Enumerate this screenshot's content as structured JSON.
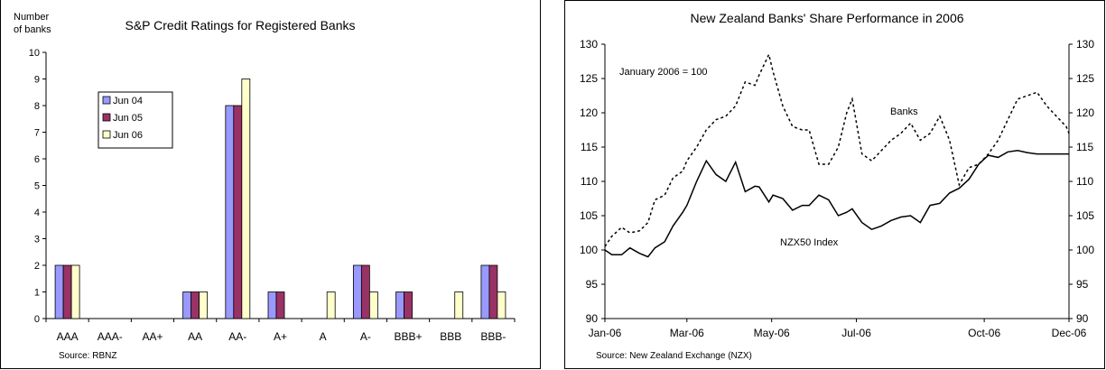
{
  "chart_data": [
    {
      "type": "bar",
      "title": "S&P Credit Ratings for Registered Banks",
      "ylabel_line1": "Number",
      "ylabel_line2": "of banks",
      "source": "Source: RBNZ",
      "categories": [
        "AAA",
        "AAA-",
        "AA+",
        "AA",
        "AA-",
        "A+",
        "A",
        "A-",
        "BBB+",
        "BBB",
        "BBB-"
      ],
      "series": [
        {
          "name": "Jun 04",
          "color": "#9999ff",
          "values": [
            2,
            0,
            0,
            1,
            8,
            1,
            0,
            2,
            1,
            0,
            2
          ]
        },
        {
          "name": "Jun 05",
          "color": "#993366",
          "values": [
            2,
            0,
            0,
            1,
            8,
            1,
            0,
            2,
            1,
            0,
            2
          ]
        },
        {
          "name": "Jun 06",
          "color": "#ffffcc",
          "values": [
            2,
            0,
            0,
            1,
            9,
            0,
            1,
            1,
            0,
            1,
            1
          ]
        }
      ],
      "ylim": [
        0,
        10
      ],
      "yticks": [
        "0",
        "1",
        "2",
        "3",
        "4",
        "5",
        "6",
        "7",
        "8",
        "9",
        "10"
      ],
      "legend_position": "upper-left",
      "grid": false
    },
    {
      "type": "line",
      "title": "New Zealand Banks' Share Performance in 2006",
      "annotation": "January 2006 = 100",
      "source": "Source: New Zealand Exchange (NZX)",
      "xlim": [
        "2006-01-01",
        "2006-12-01"
      ],
      "xtick_labels": [
        "Jan-06",
        "Mar-06",
        "May-06",
        "Jul-06",
        "Oct-06",
        "Dec-06"
      ],
      "xtick_dates": [
        "2006-01-01",
        "2006-03-01",
        "2006-05-01",
        "2006-07-01",
        "2006-10-01",
        "2006-12-01"
      ],
      "ylim": [
        90,
        130
      ],
      "yticks": [
        "90",
        "95",
        "100",
        "105",
        "110",
        "115",
        "120",
        "125",
        "130"
      ],
      "grid": false,
      "series": [
        {
          "name": "Banks",
          "style": "dotted",
          "x": [
            "2006-01-01",
            "2006-01-06",
            "2006-01-13",
            "2006-01-19",
            "2006-01-26",
            "2006-02-01",
            "2006-02-06",
            "2006-02-13",
            "2006-02-19",
            "2006-02-26",
            "2006-03-01",
            "2006-03-08",
            "2006-03-15",
            "2006-03-22",
            "2006-03-29",
            "2006-04-05",
            "2006-04-12",
            "2006-04-19",
            "2006-04-22",
            "2006-04-29",
            "2006-05-02",
            "2006-05-09",
            "2006-05-16",
            "2006-05-23",
            "2006-05-28",
            "2006-06-04",
            "2006-06-11",
            "2006-06-18",
            "2006-06-24",
            "2006-06-28",
            "2006-07-05",
            "2006-07-12",
            "2006-07-19",
            "2006-07-26",
            "2006-08-02",
            "2006-08-09",
            "2006-08-16",
            "2006-08-23",
            "2006-08-30",
            "2006-09-06",
            "2006-09-13",
            "2006-09-20",
            "2006-09-27",
            "2006-10-04",
            "2006-10-11",
            "2006-10-18",
            "2006-10-25",
            "2006-11-01",
            "2006-11-08",
            "2006-11-15",
            "2006-11-22",
            "2006-11-29",
            "2006-12-01"
          ],
          "y": [
            100.5,
            102,
            103.3,
            102.5,
            102.8,
            104,
            107.3,
            108,
            110.5,
            111.5,
            113,
            115,
            117.5,
            119,
            119.5,
            121,
            124.5,
            124,
            125.5,
            128.5,
            126,
            121,
            118,
            117.5,
            117.5,
            112.5,
            112.5,
            115,
            120,
            122,
            114,
            113,
            114.5,
            116,
            117,
            118.5,
            116,
            117,
            119.5,
            116,
            109.5,
            112,
            112.5,
            114,
            116,
            119,
            122,
            122.5,
            123,
            121,
            119.5,
            118,
            117
          ]
        },
        {
          "name": "NZX50 Index",
          "style": "solid",
          "x": [
            "2006-01-01",
            "2006-01-06",
            "2006-01-13",
            "2006-01-19",
            "2006-01-26",
            "2006-02-01",
            "2006-02-06",
            "2006-02-13",
            "2006-02-19",
            "2006-02-26",
            "2006-03-01",
            "2006-03-08",
            "2006-03-15",
            "2006-03-22",
            "2006-03-29",
            "2006-04-05",
            "2006-04-12",
            "2006-04-19",
            "2006-04-22",
            "2006-04-29",
            "2006-05-02",
            "2006-05-09",
            "2006-05-16",
            "2006-05-23",
            "2006-05-28",
            "2006-06-04",
            "2006-06-11",
            "2006-06-18",
            "2006-06-24",
            "2006-06-28",
            "2006-07-05",
            "2006-07-12",
            "2006-07-19",
            "2006-07-26",
            "2006-08-02",
            "2006-08-09",
            "2006-08-16",
            "2006-08-23",
            "2006-08-30",
            "2006-09-06",
            "2006-09-13",
            "2006-09-20",
            "2006-09-27",
            "2006-10-04",
            "2006-10-11",
            "2006-10-18",
            "2006-10-25",
            "2006-11-01",
            "2006-11-08",
            "2006-11-15",
            "2006-11-22",
            "2006-11-29",
            "2006-12-01"
          ],
          "y": [
            100,
            99.3,
            99.3,
            100.3,
            99.5,
            99,
            100.3,
            101.2,
            103.5,
            105.5,
            106.5,
            110,
            113,
            111,
            110,
            112.8,
            108.5,
            109.3,
            109.2,
            107,
            108,
            107.5,
            105.8,
            106.5,
            106.5,
            108,
            107.3,
            105,
            105.5,
            106,
            104,
            103,
            103.5,
            104.3,
            104.8,
            105,
            104,
            106.5,
            106.8,
            108.3,
            109,
            110.3,
            112.5,
            113.8,
            113.5,
            114.3,
            114.5,
            114.2,
            114,
            114,
            114,
            114,
            114
          ]
        }
      ],
      "series_labels": [
        "Banks",
        "NZX50 Index"
      ]
    }
  ]
}
